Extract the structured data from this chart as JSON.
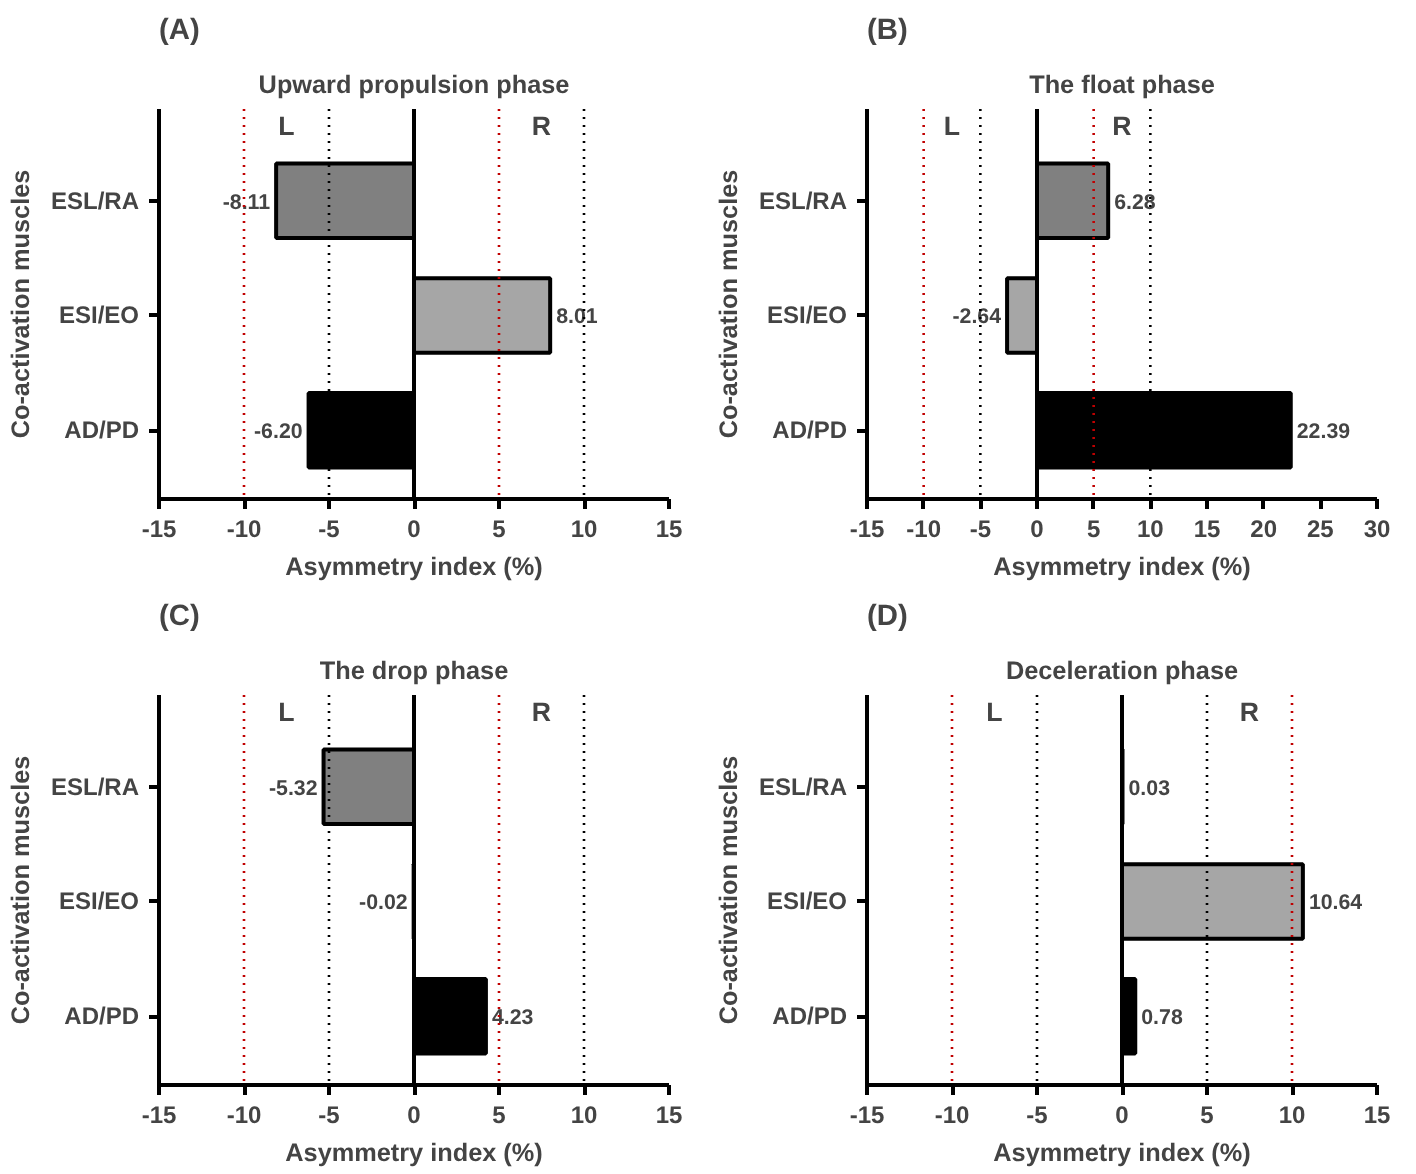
{
  "chart_data": [
    {
      "type": "bar",
      "orientation": "horizontal",
      "title": "Upward propulsion phase",
      "xlabel": "Asymmetry index (%)",
      "ylabel": "Co-activation muscles",
      "categories": [
        "ESL/RA",
        "ESI/EO",
        "AD/PD"
      ],
      "values": [
        -8.11,
        8.01,
        -6.2
      ],
      "colors": [
        "#808080",
        "#a6a6a6",
        "#000000"
      ],
      "value_labels": [
        "-8.11",
        "8.01",
        "-6.20"
      ],
      "xlim": [
        -15,
        15
      ],
      "xticks": [
        -15,
        -10,
        -5,
        0,
        5,
        10,
        15
      ],
      "grid": false,
      "ref_lines": [
        {
          "axis": "x",
          "value": -10,
          "color": "#c00000",
          "line_style": "dotted"
        },
        {
          "axis": "x",
          "value": -5,
          "color": "#000000",
          "line_style": "dotted"
        },
        {
          "axis": "x",
          "value": 5,
          "color": "#c00000",
          "line_style": "dotted"
        },
        {
          "axis": "x",
          "value": 10,
          "color": "#000000",
          "line_style": "dotted"
        }
      ],
      "annotations": [
        "(A)",
        "L",
        "R"
      ]
    },
    {
      "type": "bar",
      "orientation": "horizontal",
      "title": "The float phase",
      "xlabel": "Asymmetry index (%)",
      "ylabel": "Co-activation muscles",
      "categories": [
        "ESL/RA",
        "ESI/EO",
        "AD/PD"
      ],
      "values": [
        6.28,
        -2.64,
        22.39
      ],
      "colors": [
        "#808080",
        "#a6a6a6",
        "#000000"
      ],
      "value_labels": [
        "6.28",
        "-2.64",
        "22.39"
      ],
      "xlim": [
        -15,
        30
      ],
      "xticks": [
        -15,
        -10,
        -5,
        0,
        5,
        10,
        15,
        20,
        25,
        30
      ],
      "grid": false,
      "ref_lines": [
        {
          "axis": "x",
          "value": -10,
          "color": "#c00000",
          "line_style": "dotted"
        },
        {
          "axis": "x",
          "value": -5,
          "color": "#000000",
          "line_style": "dotted"
        },
        {
          "axis": "x",
          "value": 5,
          "color": "#c00000",
          "line_style": "dotted"
        },
        {
          "axis": "x",
          "value": 10,
          "color": "#000000",
          "line_style": "dotted"
        }
      ],
      "annotations": [
        "(B)",
        "L",
        "R"
      ]
    },
    {
      "type": "bar",
      "orientation": "horizontal",
      "title": "The drop phase",
      "xlabel": "Asymmetry index (%)",
      "ylabel": "Co-activation muscles",
      "categories": [
        "ESL/RA",
        "ESI/EO",
        "AD/PD"
      ],
      "values": [
        -5.32,
        -0.02,
        4.23
      ],
      "colors": [
        "#808080",
        "#a6a6a6",
        "#000000"
      ],
      "value_labels": [
        "-5.32",
        "-0.02",
        "4.23"
      ],
      "xlim": [
        -15,
        15
      ],
      "xticks": [
        -15,
        -10,
        -5,
        0,
        5,
        10,
        15
      ],
      "grid": false,
      "ref_lines": [
        {
          "axis": "x",
          "value": -10,
          "color": "#c00000",
          "line_style": "dotted"
        },
        {
          "axis": "x",
          "value": -5,
          "color": "#000000",
          "line_style": "dotted"
        },
        {
          "axis": "x",
          "value": 5,
          "color": "#c00000",
          "line_style": "dotted"
        },
        {
          "axis": "x",
          "value": 10,
          "color": "#000000",
          "line_style": "dotted"
        }
      ],
      "annotations": [
        "(C)",
        "L",
        "R"
      ]
    },
    {
      "type": "bar",
      "orientation": "horizontal",
      "title": "Deceleration phase",
      "xlabel": "Asymmetry index (%)",
      "ylabel": "Co-activation muscles",
      "categories": [
        "ESL/RA",
        "ESI/EO",
        "AD/PD"
      ],
      "values": [
        0.03,
        10.64,
        0.78
      ],
      "colors": [
        "#808080",
        "#a6a6a6",
        "#000000"
      ],
      "value_labels": [
        "0.03",
        "10.64",
        "0.78"
      ],
      "xlim": [
        -15,
        15
      ],
      "xticks": [
        -15,
        -10,
        -5,
        0,
        5,
        10,
        15
      ],
      "grid": false,
      "ref_lines": [
        {
          "axis": "x",
          "value": -10,
          "color": "#c00000",
          "line_style": "dotted"
        },
        {
          "axis": "x",
          "value": -5,
          "color": "#000000",
          "line_style": "dotted"
        },
        {
          "axis": "x",
          "value": 5,
          "color": "#000000",
          "line_style": "dotted"
        },
        {
          "axis": "x",
          "value": 10,
          "color": "#c00000",
          "line_style": "dotted"
        }
      ],
      "annotations": [
        "(D)",
        "L",
        "R"
      ]
    }
  ]
}
